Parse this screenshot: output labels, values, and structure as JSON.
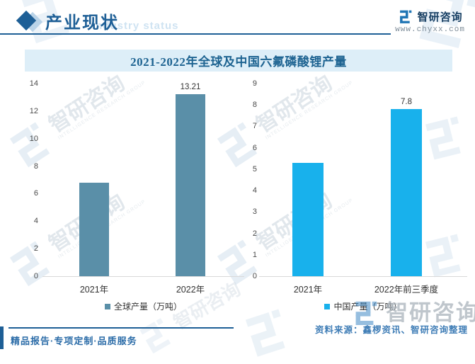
{
  "header": {
    "title": "产业现状",
    "subtitle": "Industry status"
  },
  "brand": {
    "name": "智研咨询",
    "website": "www.chyxx.com"
  },
  "chart": {
    "title": "2021-2022年全球及中国六氟磷酸锂产量"
  },
  "chart_data": [
    {
      "type": "bar",
      "name": "global-production",
      "categories": [
        "2021年",
        "2022年"
      ],
      "values": [
        6.8,
        13.21
      ],
      "data_labels": [
        "",
        "13.21"
      ],
      "legend": "全球产量（万吨）",
      "bar_color": "#5a8fa8",
      "ylim": [
        0,
        14
      ],
      "ytick_step": 2,
      "grid": false,
      "legend_position": "bottom"
    },
    {
      "type": "bar",
      "name": "china-production",
      "categories": [
        "2021年",
        "2022年前三季度"
      ],
      "values": [
        5.3,
        7.8
      ],
      "data_labels": [
        "",
        "7.8"
      ],
      "legend": "中国产量（万吨）",
      "bar_color": "#18b1ec",
      "ylim": [
        0,
        9
      ],
      "ytick_step": 1,
      "grid": false,
      "legend_position": "bottom"
    }
  ],
  "footer": {
    "tagline": "精品报告·专项定制·品质服务",
    "source": "资料来源：鑫椤资讯、智研咨询整理"
  },
  "watermark": {
    "text": "智研咨询",
    "caption": "INTELLIGENCE RESEARCH GROUP"
  }
}
